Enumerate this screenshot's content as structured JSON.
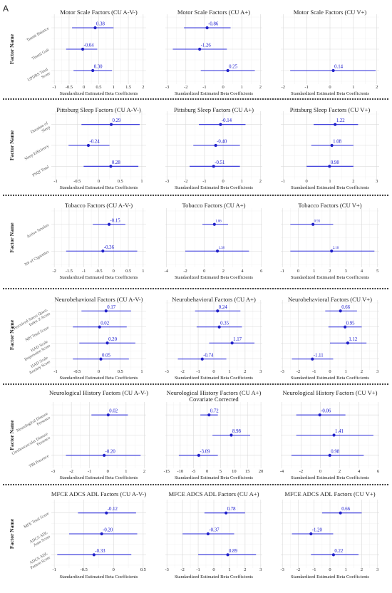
{
  "panel_label": "A",
  "y_axis_title": "Factor Name",
  "x_axis_title": "Standardized Estimated Beta Coefficients",
  "colors": {
    "point": "#2020c8",
    "interval": "#2b2bd9",
    "label": "#1010cc"
  },
  "chart_data": [
    {
      "type": "forest",
      "title": "Motor Scale Factors (CU A-V-)",
      "show_factor_names": true,
      "factors": [
        "Tinetti Balance",
        "Tinetti Gait",
        "UPDRS Total Score"
      ],
      "estimates": [
        0.38,
        -0.04,
        0.3
      ],
      "lower": [
        -0.4,
        -0.6,
        -0.35
      ],
      "upper": [
        1.0,
        0.45,
        0.95
      ],
      "labels": [
        "0.38",
        "-0.04",
        "0.30"
      ],
      "xlim": [
        -1.1,
        2.1
      ],
      "ticks": [
        -1,
        -0.5,
        0,
        0.5,
        1,
        1.5,
        2
      ]
    },
    {
      "type": "forest",
      "title": "Motor Scale Factors (CU A+)",
      "show_factor_names": false,
      "factors": [
        "Tinetti Balance",
        "Tinetti Gait",
        "UPDRS Total Score"
      ],
      "estimates": [
        -0.86,
        -1.26,
        0.25
      ],
      "lower": [
        -2.1,
        -2.7,
        -1.2
      ],
      "upper": [
        0.4,
        0.2,
        1.7
      ],
      "labels": [
        "-0.86",
        "-1.26",
        "0.25"
      ],
      "xlim": [
        -3.1,
        2.1
      ],
      "ticks": [
        -3,
        -2,
        -1,
        0,
        1,
        2
      ]
    },
    {
      "type": "forest",
      "title": "Motor Scale Factors (CU V+)",
      "show_factor_names": false,
      "factors": [
        "Tinetti Balance",
        "Tinetti Gait",
        "UPDRS Total Score"
      ],
      "estimates": [
        null,
        null,
        0.14
      ],
      "lower": [
        null,
        null,
        -1.7
      ],
      "upper": [
        null,
        null,
        1.95
      ],
      "labels": [
        "",
        "",
        "0.14"
      ],
      "xlim": [
        -2.1,
        2.1
      ],
      "ticks": [
        -2,
        -1,
        0,
        1,
        2
      ]
    },
    {
      "type": "forest",
      "title": "Pittsburg Sleep Factors (CU A-V-)",
      "show_factor_names": true,
      "factors": [
        "Duration of Sleep",
        "Sleep Efficiency",
        "PSQI Total"
      ],
      "estimates": [
        0.29,
        -0.24,
        0.28
      ],
      "lower": [
        -0.4,
        -0.7,
        -0.35
      ],
      "upper": [
        0.95,
        0.25,
        0.92
      ],
      "labels": [
        "0.29",
        "-0.24",
        "0.28"
      ],
      "xlim": [
        -1.1,
        1.1
      ],
      "ticks": [
        -1,
        -0.5,
        0,
        0.5,
        1
      ]
    },
    {
      "type": "forest",
      "title": "Pittsburg Sleep Factors (CU A+)",
      "show_factor_names": false,
      "factors": [
        "Duration of Sleep",
        "Sleep Efficiency",
        "PSQI Total"
      ],
      "estimates": [
        -0.14,
        -0.4,
        -0.51
      ],
      "lower": [
        -1.3,
        -1.6,
        -1.8
      ],
      "upper": [
        1.2,
        0.9,
        0.9
      ],
      "labels": [
        "-0.14",
        "-0.40",
        "-0.51"
      ],
      "xlim": [
        -3.1,
        2.1
      ],
      "ticks": [
        -3,
        -2,
        -1,
        0,
        1,
        2
      ]
    },
    {
      "type": "forest",
      "title": "Pittsburg Sleep Factors (CU V+)",
      "show_factor_names": false,
      "factors": [
        "Duration of Sleep",
        "Sleep Efficiency",
        "PSQI Total"
      ],
      "estimates": [
        1.22,
        1.08,
        0.98
      ],
      "lower": [
        0.3,
        0.2,
        0.0
      ],
      "upper": [
        2.2,
        2.0,
        2.0
      ],
      "labels": [
        "1.22",
        "1.08",
        "0.98"
      ],
      "xlim": [
        -1.1,
        3.1
      ],
      "ticks": [
        -1,
        0,
        1,
        2,
        3
      ]
    },
    {
      "type": "forest",
      "title": "Tobacco Factors (CU A-V-)",
      "show_factor_names": true,
      "factors": [
        "Active Smoker",
        "N# of Cigarettes"
      ],
      "estimates": [
        -0.15,
        -0.36
      ],
      "lower": [
        -0.7,
        -1.6
      ],
      "upper": [
        0.4,
        0.8
      ],
      "labels": [
        "-0.15",
        "-0.36"
      ],
      "xlim": [
        -2.1,
        1.1
      ],
      "ticks": [
        -2,
        -1.5,
        -1,
        -0.5,
        0,
        0.5,
        1
      ]
    },
    {
      "type": "forest",
      "title": "Tobacco Factors (CU A+)",
      "show_factor_names": false,
      "factors": [
        "Active Smoker",
        "N# of Cigarettes"
      ],
      "estimates": [
        1.06,
        1.38
      ],
      "lower": [
        -0.2,
        -2.0
      ],
      "upper": [
        2.5,
        4.7
      ],
      "labels": [
        "1.06",
        "1.38"
      ],
      "xlim": [
        -4.1,
        6.1
      ],
      "ticks": [
        -4,
        -2,
        0,
        2,
        4,
        6
      ]
    },
    {
      "type": "forest",
      "title": "Tobacco Factors (CU V+)",
      "show_factor_names": false,
      "factors": [
        "Active Smoker",
        "N# of Cigarettes"
      ],
      "estimates": [
        0.93,
        2.1
      ],
      "lower": [
        -0.5,
        -0.5
      ],
      "upper": [
        2.2,
        4.8
      ],
      "labels": [
        "0.93",
        "2.10"
      ],
      "xlim": [
        -1.1,
        5.1
      ],
      "ticks": [
        -1,
        0,
        1,
        2,
        3,
        4,
        5
      ]
    },
    {
      "type": "forest",
      "title": "Neurobehavioral Factors (CU A-V-)",
      "show_factor_names": true,
      "factors": [
        "Perceived Stress Quest. Index Z-Score",
        "NPI Total Score",
        "HAD Scale Depression Score",
        "HAD Scale Anxiety Score"
      ],
      "estimates": [
        0.17,
        0.02,
        0.2,
        0.05
      ],
      "lower": [
        -0.4,
        -0.6,
        -0.45,
        -0.6
      ],
      "upper": [
        0.75,
        0.65,
        0.85,
        0.7
      ],
      "labels": [
        "0.17",
        "0.02",
        "0.20",
        "0.05"
      ],
      "xlim": [
        -1.1,
        1.1
      ],
      "ticks": [
        -1,
        -0.5,
        0,
        0.5,
        1
      ]
    },
    {
      "type": "forest",
      "title": "Neurobehavioral Factors (CU A+)",
      "show_factor_names": false,
      "factors": [
        "Perceived Stress Quest. Index Z-Score",
        "NPI Total Score",
        "HAD Scale Depression Score",
        "HAD Scale Anxiety Score"
      ],
      "estimates": [
        0.24,
        0.35,
        1.17,
        -0.74
      ],
      "lower": [
        -1.2,
        -1.1,
        -0.3,
        -2.3
      ],
      "upper": [
        1.7,
        1.8,
        2.6,
        0.8
      ],
      "labels": [
        "0.24",
        "0.35",
        "1.17",
        "-0.74"
      ],
      "xlim": [
        -3.1,
        3.1
      ],
      "ticks": [
        -3,
        -2,
        -1,
        0,
        1,
        2,
        3
      ]
    },
    {
      "type": "forest",
      "title": "Neurobehavioral Factors (CU V+)",
      "show_factor_names": false,
      "factors": [
        "Perceived Stress Quest. Index Z-Score",
        "NPI Total Score",
        "HAD Scale Depression Score",
        "HAD Scale Anxiety Score"
      ],
      "estimates": [
        0.66,
        0.95,
        1.12,
        -1.11
      ],
      "lower": [
        -0.3,
        -0.1,
        0.0,
        -2.4
      ],
      "upper": [
        1.7,
        2.0,
        2.3,
        0.2
      ],
      "labels": [
        "0.66",
        "0.95",
        "1.12",
        "-1.11"
      ],
      "xlim": [
        -3.1,
        3.1
      ],
      "ticks": [
        -3,
        -2,
        -1,
        0,
        1,
        2,
        3
      ]
    },
    {
      "type": "forest",
      "title": "Neurological History Factors (CU A-V-)",
      "show_factor_names": true,
      "factors": [
        "Neurological Disease Presence",
        "Cerebrovascular Disease Presence",
        "TBI Presence"
      ],
      "estimates": [
        0.02,
        null,
        -0.2
      ],
      "lower": [
        -0.9,
        null,
        -2.3
      ],
      "upper": [
        1.1,
        null,
        1.8
      ],
      "labels": [
        "0.02",
        "",
        "-0.20"
      ],
      "xlim": [
        -3.1,
        2.1
      ],
      "ticks": [
        -3,
        -2,
        -1,
        0,
        1,
        2
      ]
    },
    {
      "type": "forest",
      "title": "Neurological History Factors (CU A+) Covariate Corrected",
      "show_factor_names": false,
      "factors": [
        "Neurological Disease Presence",
        "Cerebrovascular Disease Presence",
        "TBI Presence"
      ],
      "estimates": [
        0.72,
        8.98,
        -3.09
      ],
      "lower": [
        -2.5,
        2.0,
        -10.5
      ],
      "upper": [
        4.0,
        16.0,
        4.0
      ],
      "labels": [
        "0.72",
        "8.98",
        "-3.09"
      ],
      "xlim": [
        -15.5,
        20.5
      ],
      "ticks": [
        -15,
        -10,
        -5,
        0,
        5,
        10,
        15,
        20
      ]
    },
    {
      "type": "forest",
      "title": "Neurological History Factors (CU V+)",
      "show_factor_names": false,
      "factors": [
        "Neurological Disease Presence",
        "Cerebrovascular Disease Presence",
        "TBI Presence"
      ],
      "estimates": [
        -0.06,
        1.41,
        0.98
      ],
      "lower": [
        -2.5,
        -2.5,
        -3.0
      ],
      "upper": [
        2.6,
        5.5,
        4.5
      ],
      "labels": [
        "-0.06",
        "1.41",
        "0.98"
      ],
      "xlim": [
        -4.1,
        6.1
      ],
      "ticks": [
        -4,
        -2,
        0,
        2,
        4,
        6
      ]
    },
    {
      "type": "forest",
      "title": "MFCE ADCS ADL Factors (CU A-V-)",
      "show_factor_names": true,
      "factors": [
        "MFE Total Score",
        "ADCS ADL Auto Score",
        "ADCS ADL Pattern Score"
      ],
      "estimates": [
        -0.12,
        -0.2,
        -0.33
      ],
      "lower": [
        -0.6,
        -0.75,
        -0.95
      ],
      "upper": [
        0.38,
        0.4,
        0.3
      ],
      "labels": [
        "-0.12",
        "-0.20",
        "-0.33"
      ],
      "xlim": [
        -1.05,
        0.55
      ],
      "ticks": [
        -1,
        -0.5,
        0,
        0.5
      ]
    },
    {
      "type": "forest",
      "title": "MFCE ADCS ADL Factors (CU A+)",
      "show_factor_names": false,
      "factors": [
        "MFE Total Score",
        "ADCS ADL Auto Score",
        "ADCS ADL Pattern Score"
      ],
      "estimates": [
        0.78,
        -0.37,
        0.89
      ],
      "lower": [
        -0.6,
        -2.0,
        -1.0
      ],
      "upper": [
        2.0,
        1.3,
        2.7
      ],
      "labels": [
        "0.78",
        "-0.37",
        "0.89"
      ],
      "xlim": [
        -3.1,
        3.1
      ],
      "ticks": [
        -3,
        -2,
        -1,
        0,
        1,
        2,
        3
      ]
    },
    {
      "type": "forest",
      "title": "MFCE ADCS ADL Factors (CU V+)",
      "show_factor_names": false,
      "factors": [
        "MFE Total Score",
        "ADCS ADL Auto Score",
        "ADCS ADL Pattern Score"
      ],
      "estimates": [
        0.66,
        -1.2,
        0.22
      ],
      "lower": [
        -0.5,
        -2.4,
        -1.2
      ],
      "upper": [
        2.0,
        0.2,
        1.8
      ],
      "labels": [
        "0.66",
        "-1.20",
        "0.22"
      ],
      "xlim": [
        -3.1,
        3.1
      ],
      "ticks": [
        -3,
        -2,
        -1,
        0,
        1,
        2,
        3
      ]
    }
  ]
}
